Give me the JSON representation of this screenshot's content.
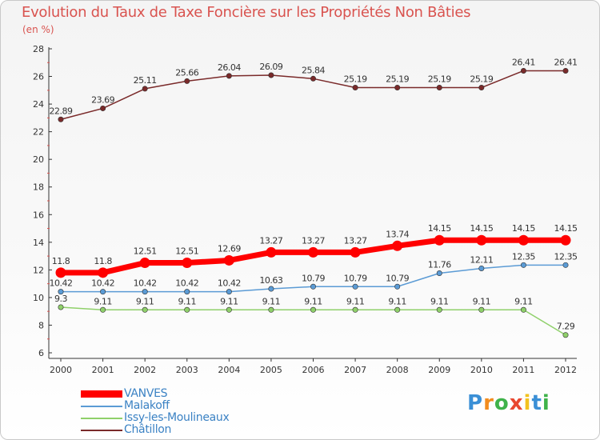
{
  "title": "Evolution du Taux de Taxe Foncière sur les Propriétés Non Bâties",
  "unit_label": "(en %)",
  "chart_data": {
    "type": "line",
    "title": "Evolution du Taux de Taxe Foncière sur les Propriétés Non Bâties",
    "ylabel": "(en %)",
    "xlabel": "",
    "x": [
      "2000",
      "2001",
      "2002",
      "2003",
      "2004",
      "2005",
      "2006",
      "2007",
      "2008",
      "2009",
      "2010",
      "2011",
      "2012"
    ],
    "ylim": [
      6,
      28
    ],
    "yticks": [
      6,
      8,
      10,
      12,
      14,
      16,
      18,
      20,
      22,
      24,
      26,
      28
    ],
    "grid": false,
    "legend_position": "bottom-left",
    "series": [
      {
        "name": "VANVES",
        "color": "#ff0000",
        "values": [
          11.8,
          11.8,
          12.51,
          12.51,
          12.69,
          13.27,
          13.27,
          13.27,
          13.74,
          14.15,
          14.15,
          14.15,
          14.15
        ],
        "labels": [
          "11.8",
          "11.8",
          "12.51",
          "12.51",
          "12.69",
          "13.27",
          "13.27",
          "13.27",
          "13.74",
          "14.15",
          "14.15",
          "14.15",
          "14.15"
        ]
      },
      {
        "name": "Malakoff",
        "color": "#5b9bd5",
        "values": [
          10.42,
          10.42,
          10.42,
          10.42,
          10.42,
          10.63,
          10.79,
          10.79,
          10.79,
          11.76,
          12.11,
          12.35,
          12.35
        ],
        "labels": [
          "10.42",
          "10.42",
          "10.42",
          "10.42",
          "10.42",
          "10.63",
          "10.79",
          "10.79",
          "10.79",
          "11.76",
          "12.11",
          "12.35",
          "12.35"
        ]
      },
      {
        "name": "Issy-les-Moulineaux",
        "color": "#8fd06a",
        "values": [
          9.3,
          9.11,
          9.11,
          9.11,
          9.11,
          9.11,
          9.11,
          9.11,
          9.11,
          9.11,
          9.11,
          9.11,
          7.29
        ],
        "labels": [
          "9.3",
          "9.11",
          "9.11",
          "9.11",
          "9.11",
          "9.11",
          "9.11",
          "9.11",
          "9.11",
          "9.11",
          "9.11",
          "9.11",
          "7.29"
        ]
      },
      {
        "name": "Châtillon",
        "color": "#7a2a2a",
        "values": [
          22.89,
          23.69,
          25.11,
          25.66,
          26.04,
          26.09,
          25.84,
          25.19,
          25.19,
          25.19,
          25.19,
          26.41,
          26.41
        ],
        "labels": [
          "22.89",
          "23.69",
          "25.11",
          "25.66",
          "26.04",
          "26.09",
          "25.84",
          "25.19",
          "25.19",
          "25.19",
          "25.19",
          "26.41",
          "26.41"
        ]
      }
    ]
  },
  "logo": {
    "letters": [
      "P",
      "r",
      "o",
      "x",
      "i",
      "t",
      "i"
    ],
    "colors": [
      "#3a8fd6",
      "#f28c1e",
      "#3fb24a",
      "#e8472f",
      "#f2c21e",
      "#3a8fd6",
      "#3fb24a"
    ]
  }
}
